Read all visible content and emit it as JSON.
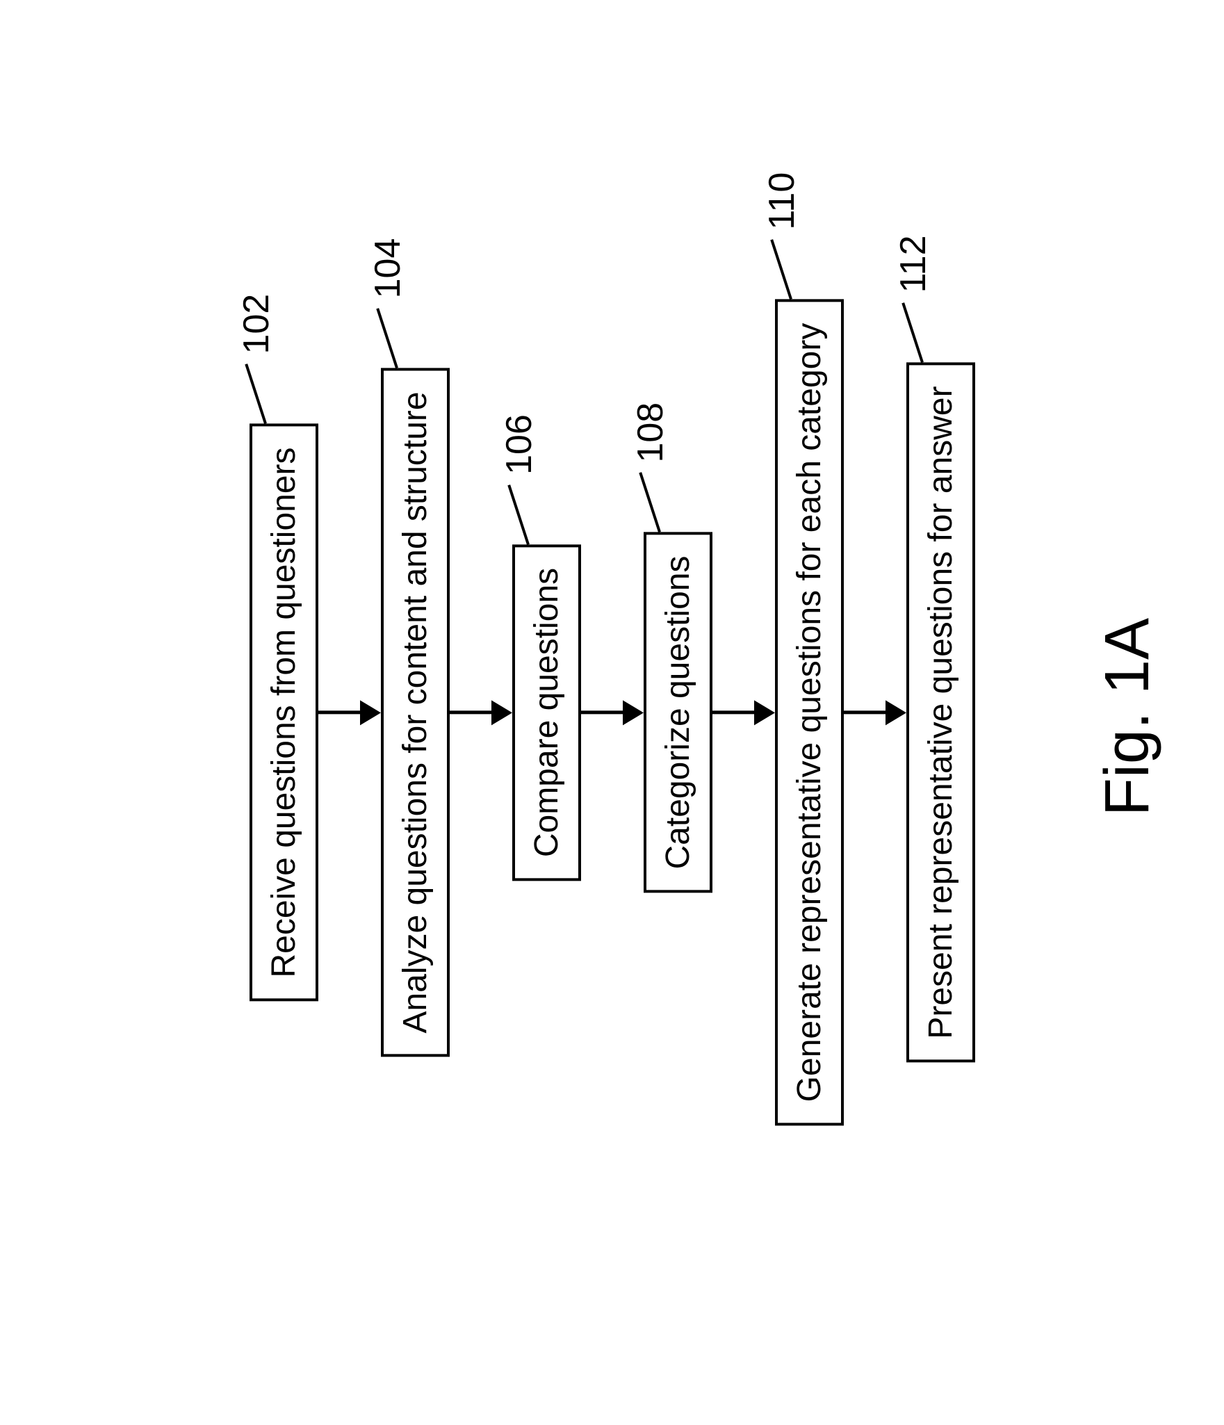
{
  "flowchart": {
    "type": "flowchart",
    "background_color": "#ffffff",
    "box_border_color": "#000000",
    "box_border_width": 4,
    "box_fill_color": "#ffffff",
    "text_color": "#000000",
    "box_font_size": 48,
    "ref_font_size": 52,
    "arrow_color": "#000000",
    "arrow_shaft_width": 5,
    "arrow_head_width": 36,
    "arrow_head_height": 30,
    "steps": [
      {
        "text": "Receive questions from questioners",
        "ref": "102"
      },
      {
        "text": "Analyze questions for content and structure",
        "ref": "104"
      },
      {
        "text": "Compare questions",
        "ref": "106"
      },
      {
        "text": "Categorize questions",
        "ref": "108"
      },
      {
        "text": "Generate representative questions for each category",
        "ref": "110"
      },
      {
        "text": "Present representative questions for answer",
        "ref": "112"
      }
    ],
    "caption": "Fig. 1A",
    "caption_font_size": 90,
    "rotation_deg": -90
  }
}
